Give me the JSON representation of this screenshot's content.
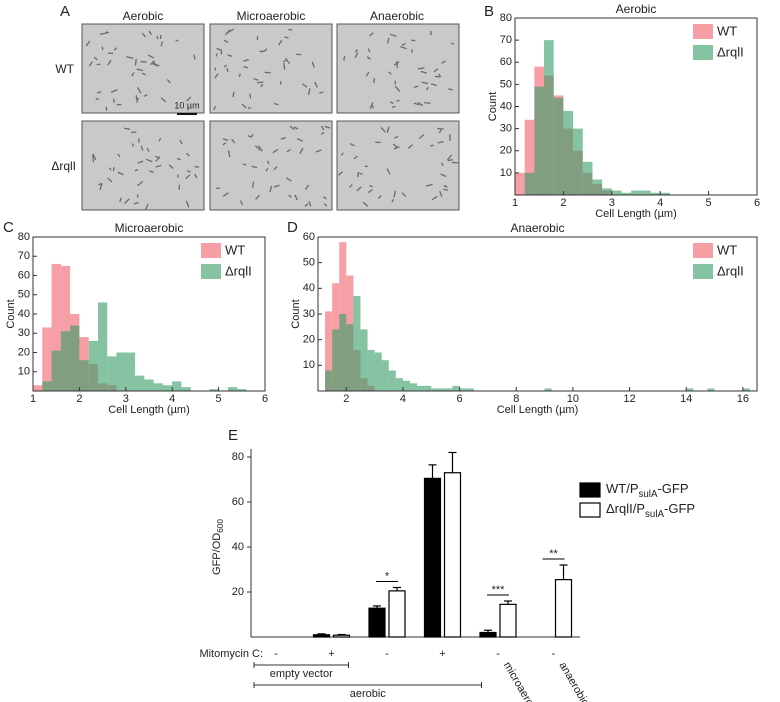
{
  "panel_a": {
    "panel_label": "A",
    "columns": [
      "Aerobic",
      "Microaerobic",
      "Anaerobic"
    ],
    "rows": [
      "WT",
      "ΔrqlI"
    ],
    "scale_bar": "10 µm"
  },
  "chart_data": [
    {
      "type": "histogram",
      "panel_label": "B",
      "title": "Aerobic",
      "xlabel": "Cell Length (µm)",
      "ylabel": "Count",
      "bins": [
        1,
        1.2,
        1.4,
        1.6,
        1.8,
        2,
        2.2,
        2.4,
        2.6,
        2.8,
        3,
        3.2,
        3.4,
        3.6,
        3.8,
        4,
        4.2,
        4.4
      ],
      "series": [
        {
          "name": "WT",
          "color": "#f2646f",
          "values": [
            10,
            34,
            58,
            54,
            45,
            30,
            20,
            10,
            5,
            2,
            0,
            0,
            0,
            0,
            0,
            0,
            0
          ]
        },
        {
          "name": "ΔrqlI",
          "color": "#3a9e6b",
          "values": [
            0,
            10,
            49,
            70,
            44,
            38,
            30,
            15,
            7,
            3,
            2,
            1,
            2,
            2,
            1,
            1,
            0
          ]
        }
      ],
      "xlim": [
        1,
        6
      ],
      "xticks": [
        1,
        2,
        3,
        4,
        5,
        6
      ],
      "ylim": [
        0,
        80
      ],
      "yticks": [
        10,
        20,
        30,
        40,
        50,
        60,
        70,
        80
      ],
      "legend": "upper right"
    },
    {
      "type": "histogram",
      "panel_label": "C",
      "title": "Microaerobic",
      "xlabel": "Cell Length (µm)",
      "ylabel": "Count",
      "bins": [
        1,
        1.2,
        1.4,
        1.6,
        1.8,
        2,
        2.2,
        2.4,
        2.6,
        2.8,
        3,
        3.2,
        3.4,
        3.6,
        3.8,
        4,
        4.2,
        4.4,
        4.6,
        4.8,
        5,
        5.2,
        5.4,
        5.6
      ],
      "series": [
        {
          "name": "WT",
          "color": "#f2646f",
          "values": [
            3,
            33,
            66,
            65,
            40,
            28,
            14,
            4,
            3,
            0,
            0,
            0,
            0,
            0,
            0,
            0,
            0,
            0,
            0,
            0,
            0,
            0,
            0
          ]
        },
        {
          "name": "ΔrqlI",
          "color": "#3a9e6b",
          "values": [
            0,
            5,
            21,
            31,
            34,
            16,
            26,
            46,
            18,
            20,
            20,
            8,
            6,
            4,
            3,
            5,
            2,
            0,
            0,
            1,
            0,
            2,
            1
          ]
        }
      ],
      "xlim": [
        1,
        6
      ],
      "xticks": [
        1,
        2,
        3,
        4,
        5,
        6
      ],
      "ylim": [
        0,
        80
      ],
      "yticks": [
        10,
        20,
        30,
        40,
        50,
        60,
        70,
        80
      ],
      "legend": "upper right"
    },
    {
      "type": "histogram",
      "panel_label": "D",
      "title": "Anaerobic",
      "xlabel": "Cell Length (µm)",
      "ylabel": "Count",
      "bins": [
        1,
        1.25,
        1.5,
        1.75,
        2,
        2.25,
        2.5,
        2.75,
        3,
        3.25,
        3.5,
        3.75,
        4,
        4.25,
        4.5,
        4.75,
        5,
        5.25,
        5.5,
        5.75,
        6,
        6.25,
        6.5,
        6.75,
        7,
        7.25,
        7.5,
        7.75,
        8,
        8.25,
        8.5,
        8.75,
        9,
        9.25,
        9.5,
        9.75,
        10,
        10.25,
        10.5,
        10.75,
        11,
        11.25,
        11.5,
        11.75,
        12,
        12.25,
        12.5,
        12.75,
        13,
        13.25,
        13.5,
        13.75,
        14,
        14.25,
        14.5,
        14.75,
        15,
        15.25,
        15.5,
        15.75,
        16,
        16.25,
        16.5
      ],
      "series": [
        {
          "name": "WT",
          "color": "#f2646f",
          "values": [
            0,
            31,
            42,
            58,
            45,
            16,
            5,
            2,
            0,
            0,
            0,
            0,
            0,
            0,
            0,
            0,
            0,
            0,
            0,
            0,
            0,
            0,
            0,
            0,
            0,
            0,
            0,
            0,
            0,
            0,
            0,
            0,
            0,
            0,
            0,
            0,
            0,
            0,
            0,
            0,
            0,
            0,
            0,
            0,
            0,
            0,
            0,
            0,
            0,
            0,
            0,
            0,
            0,
            0,
            0,
            0,
            0,
            0,
            0,
            0,
            0,
            0
          ]
        },
        {
          "name": "ΔrqlI",
          "color": "#3a9e6b",
          "values": [
            0,
            8,
            24,
            30,
            26,
            37,
            24,
            16,
            15,
            12,
            8,
            5,
            4,
            3,
            2,
            2,
            1,
            1,
            1,
            2,
            1,
            1,
            0,
            0,
            0,
            0,
            0,
            0,
            0,
            0,
            0,
            0,
            1,
            0,
            0,
            0,
            0,
            0,
            0,
            0,
            0,
            0,
            0,
            0,
            0,
            0,
            0,
            0,
            0,
            0,
            0,
            0,
            1,
            0,
            0,
            1,
            0,
            0,
            0,
            0,
            1,
            0
          ]
        }
      ],
      "xlim": [
        1,
        16.5
      ],
      "xticks": [
        2,
        4,
        6,
        8,
        10,
        12,
        14,
        16
      ],
      "ylim": [
        0,
        60
      ],
      "yticks": [
        10,
        20,
        30,
        40,
        50,
        60
      ],
      "legend": "upper right"
    },
    {
      "type": "bar",
      "panel_label": "E",
      "ylabel_parts": [
        "GFP/OD",
        "600"
      ],
      "categories": [
        "-",
        "+",
        "-",
        "+",
        "-",
        "-"
      ],
      "row_label": "Mitomycin C:",
      "condition_labels": [
        "microaerobic",
        "anaerobic"
      ],
      "group_labels": [
        "empty vector",
        "aerobic"
      ],
      "significance": [
        "*",
        "***",
        "**"
      ],
      "ylim": [
        0,
        80
      ],
      "yticks": [
        20,
        40,
        60,
        80
      ],
      "legend": "upper right",
      "series": [
        {
          "name_parts": [
            "WT/P",
            "sulA",
            "-GFP"
          ],
          "color": "#000000",
          "values": [
            0,
            1,
            12.8,
            70.5,
            2,
            null
          ],
          "errors": [
            null,
            0.4,
            1,
            6,
            1,
            null
          ]
        },
        {
          "name_parts": [
            "ΔrqlI/P",
            "sulA",
            "-GFP"
          ],
          "color": "#ffffff",
          "values": [
            0,
            0.8,
            20.5,
            73,
            14.5,
            25.5
          ],
          "errors": [
            null,
            0.3,
            1.5,
            9,
            1.5,
            6.5
          ]
        }
      ]
    }
  ]
}
